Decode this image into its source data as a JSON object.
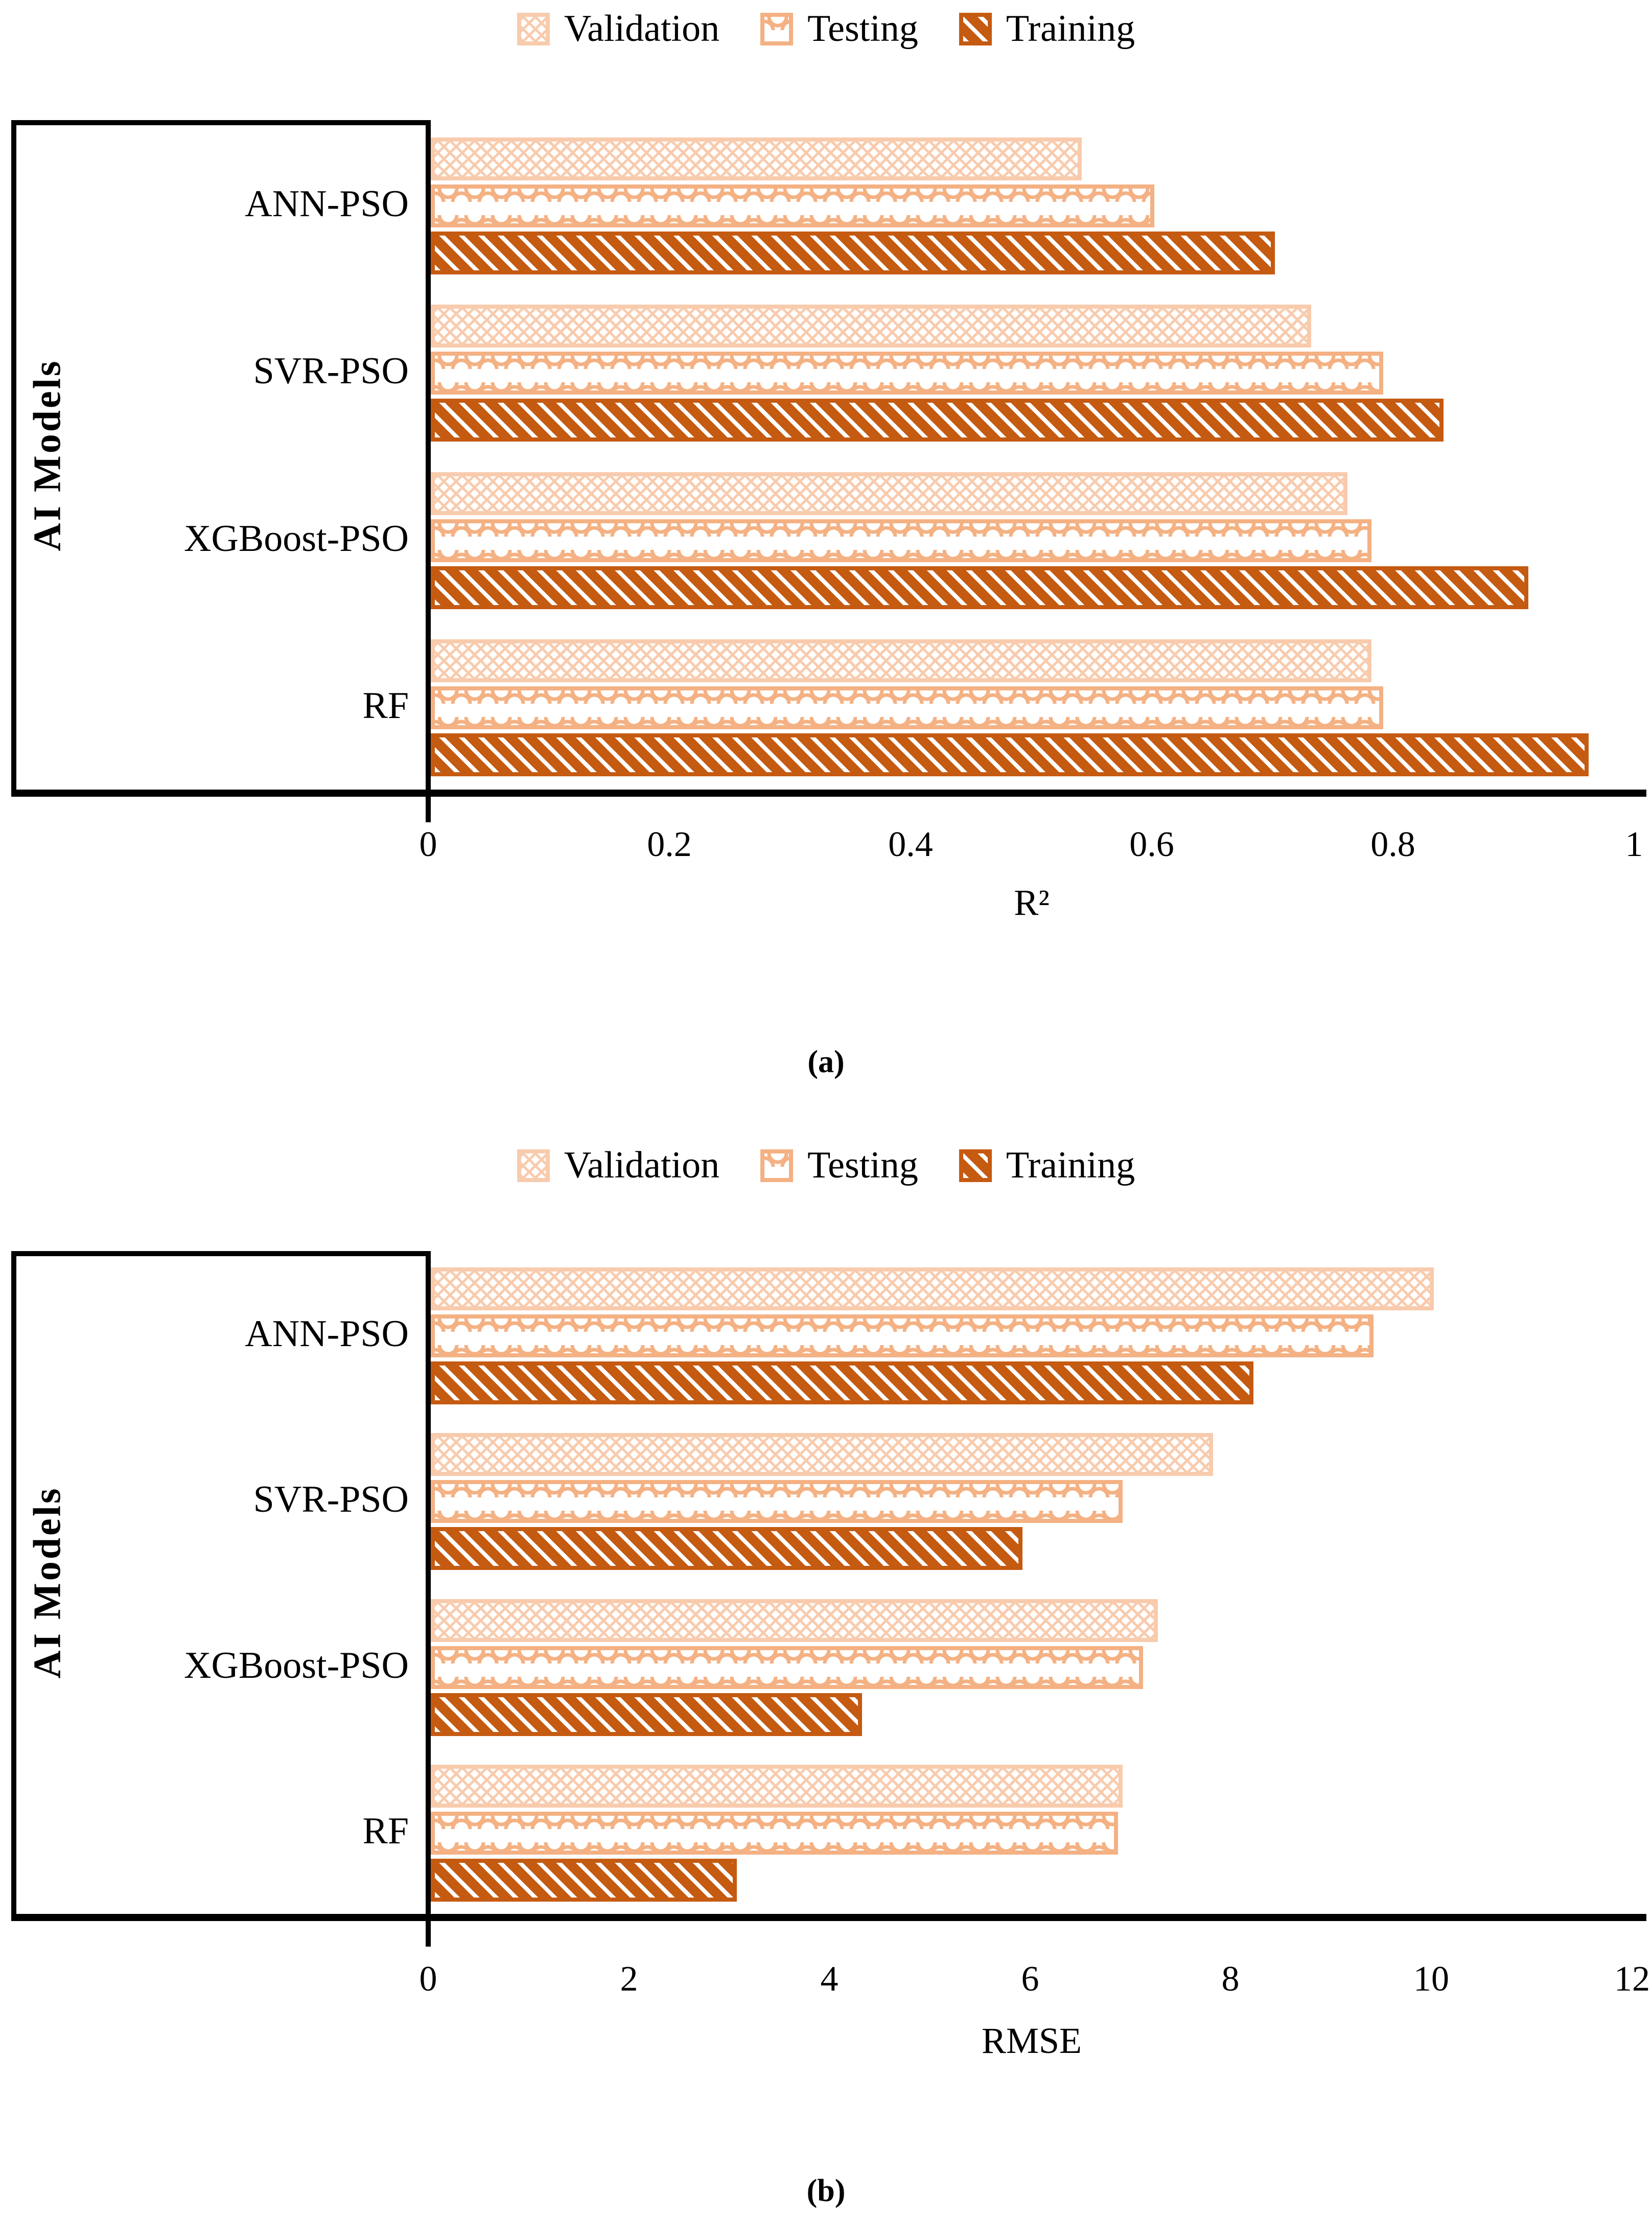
{
  "colors": {
    "validation": "#F8CBAD",
    "testing": "#F4B183",
    "training": "#C55A11",
    "axis": "#000000"
  },
  "chart_data": [
    {
      "type": "bar",
      "orientation": "horizontal",
      "title": "",
      "xlabel": "R²",
      "ylabel": "AI Models",
      "caption": "(a)",
      "categories": [
        "ANN-PSO",
        "SVR-PSO",
        "XGBoost-PSO",
        "RF"
      ],
      "series": [
        {
          "name": "Validation",
          "values": [
            0.54,
            0.73,
            0.76,
            0.78
          ]
        },
        {
          "name": "Testing",
          "values": [
            0.6,
            0.79,
            0.78,
            0.79
          ]
        },
        {
          "name": "Training",
          "values": [
            0.7,
            0.84,
            0.91,
            0.96
          ]
        }
      ],
      "xlim": [
        0,
        1
      ],
      "xticks": [
        0,
        0.2,
        0.4,
        0.6,
        0.8,
        1
      ],
      "xtick_labels": [
        "0",
        "0.2",
        "0.4",
        "0.6",
        "0.8",
        "1"
      ],
      "legend_position": "top",
      "grid": false
    },
    {
      "type": "bar",
      "orientation": "horizontal",
      "title": "",
      "xlabel": "RMSE",
      "ylabel": "AI Models",
      "caption": "(b)",
      "categories": [
        "ANN-PSO",
        "SVR-PSO",
        "XGBoost-PSO",
        "RF"
      ],
      "series": [
        {
          "name": "Validation",
          "values": [
            10.0,
            7.8,
            7.25,
            6.9
          ]
        },
        {
          "name": "Testing",
          "values": [
            9.4,
            6.9,
            7.1,
            6.85
          ]
        },
        {
          "name": "Training",
          "values": [
            8.2,
            5.9,
            4.3,
            3.05
          ]
        }
      ],
      "xlim": [
        0,
        12
      ],
      "xticks": [
        0,
        2,
        4,
        6,
        8,
        10,
        12
      ],
      "xtick_labels": [
        "0",
        "2",
        "4",
        "6",
        "8",
        "10",
        "12"
      ],
      "legend_position": "top",
      "grid": false
    }
  ]
}
